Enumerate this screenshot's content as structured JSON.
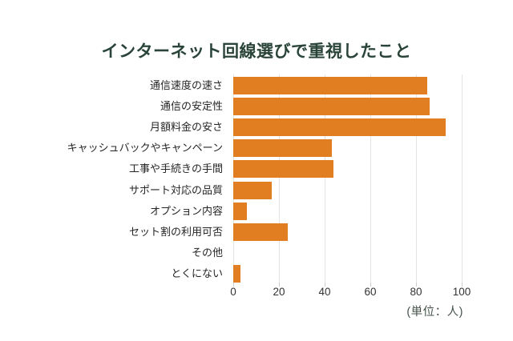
{
  "title": "インターネット回線選びで重視したこと",
  "unit_label": "(単位：人)",
  "chart_data": {
    "type": "bar",
    "orientation": "horizontal",
    "title": "インターネット回線選びで重視したこと",
    "categories": [
      "通信速度の速さ",
      "通信の安定性",
      "月額料金の安さ",
      "キャッシュバックやキャンペーン",
      "工事や手続きの手間",
      "サポート対応の品質",
      "オプション内容",
      "セット割の利用可否",
      "その他",
      "とくにない"
    ],
    "values": [
      85,
      86,
      93,
      43,
      44,
      17,
      6,
      24,
      0,
      3
    ],
    "xlabel": "(単位：人)",
    "xlim": [
      0,
      100
    ],
    "x_ticks": [
      0,
      20,
      40,
      60,
      80,
      100
    ],
    "grid": true,
    "legend": false,
    "colors": {
      "bar": "#E27E22",
      "title": "#2A4439",
      "category_label": "#262626",
      "tick_label": "#333333",
      "gridline": "#E4E4E4",
      "tick_mark": "#CCCCCC",
      "unit_label": "#44524A",
      "background": "#FFFFFF"
    }
  }
}
